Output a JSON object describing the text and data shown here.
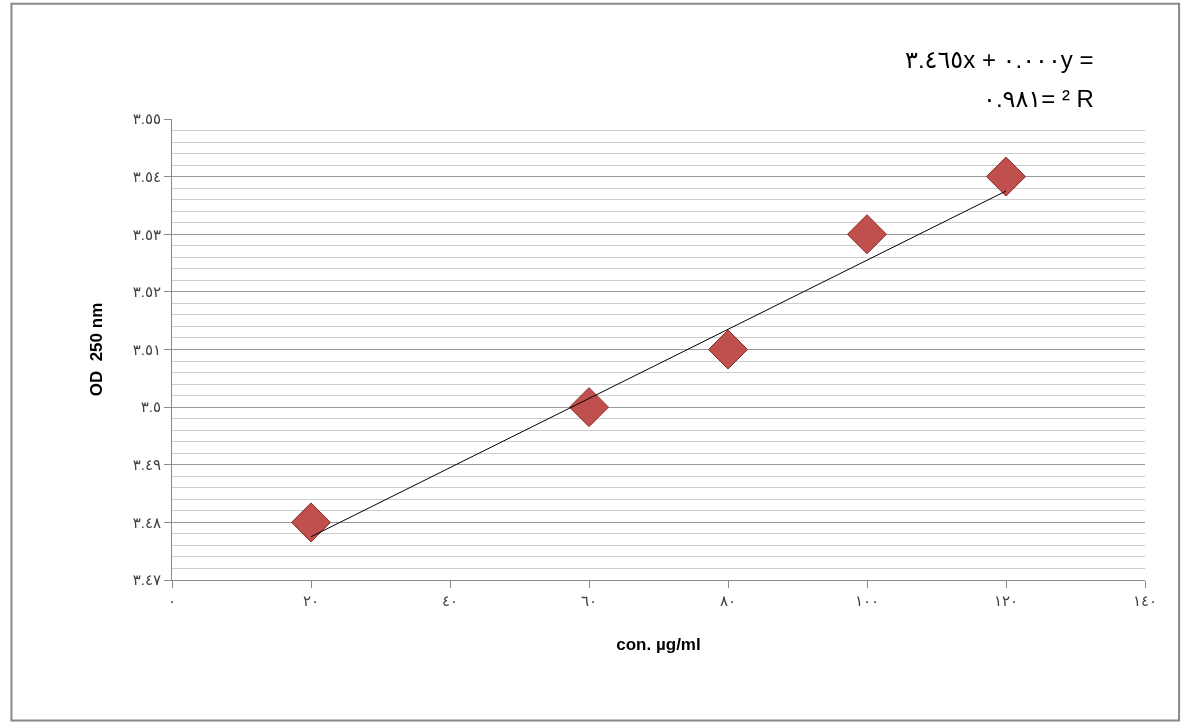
{
  "chart_data": {
    "type": "scatter",
    "x": [
      20,
      60,
      80,
      100,
      120
    ],
    "series": [
      {
        "color": "#c0504d",
        "values": [
          3.48,
          3.5,
          3.51,
          3.53,
          3.54
        ],
        "marker": "diamond"
      },
      {
        "type": "line",
        "color": "#000000",
        "x": [
          20,
          120
        ],
        "values": [
          3.4775,
          3.5375
        ],
        "marker": "none",
        "line_style": "solid"
      }
    ],
    "xlabel": "con. µg/ml",
    "ylabel": "OD  250 nm",
    "annotations": [
      "٣.٤٦٥x + ٠.٠٠٠y =",
      "٠.٩٨١= ² R"
    ],
    "xlim": [
      0,
      140
    ],
    "xticks": [
      {
        "value": 0,
        "label": "٠"
      },
      {
        "value": 20,
        "label": "٢٠"
      },
      {
        "value": 40,
        "label": "٤٠"
      },
      {
        "value": 60,
        "label": "٦٠"
      },
      {
        "value": 80,
        "label": "٨٠"
      },
      {
        "value": 100,
        "label": "١٠٠"
      },
      {
        "value": 120,
        "label": "١٢٠"
      },
      {
        "value": 140,
        "label": "١٤٠"
      }
    ],
    "ylim": [
      3.47,
      3.55
    ],
    "yticks": [
      {
        "value": 3.47,
        "label": "٣.٤٧"
      },
      {
        "value": 3.48,
        "label": "٣.٤٨"
      },
      {
        "value": 3.49,
        "label": "٣.٤٩"
      },
      {
        "value": 3.5,
        "label": "٣.٥"
      },
      {
        "value": 3.51,
        "label": "٣.٥١"
      },
      {
        "value": 3.52,
        "label": "٣.٥٢"
      },
      {
        "value": 3.53,
        "label": "٣.٥٣"
      },
      {
        "value": 3.54,
        "label": "٣.٥٤"
      },
      {
        "value": 3.55,
        "label": "٣.٥٥"
      }
    ],
    "grid": "y",
    "legend": false
  }
}
